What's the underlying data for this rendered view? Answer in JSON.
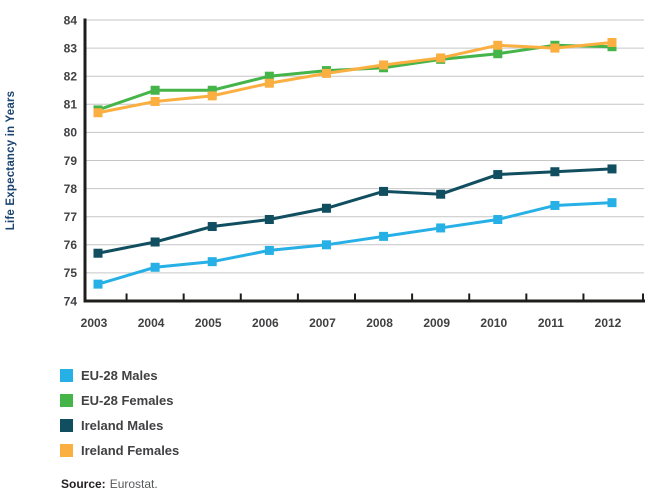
{
  "chart_data": {
    "type": "line",
    "title": "",
    "xlabel": "",
    "ylabel": "Life Expectancy in Years",
    "x": [
      "2003",
      "2004",
      "2005",
      "2006",
      "2007",
      "2008",
      "2009",
      "2010",
      "2011",
      "2012"
    ],
    "ylim": [
      74,
      84
    ],
    "ytick_step": 1,
    "grid": true,
    "legend_position": "bottom-left",
    "marker": "square",
    "series": [
      {
        "name": "EU-28 Males",
        "color": "#27B0E5",
        "values": [
          74.6,
          75.2,
          75.4,
          75.8,
          76.0,
          76.3,
          76.6,
          76.9,
          77.4,
          77.5
        ]
      },
      {
        "name": "EU-28 Females",
        "color": "#45B449",
        "values": [
          80.8,
          81.5,
          81.5,
          82.0,
          82.2,
          82.3,
          82.6,
          82.8,
          83.1,
          83.05
        ]
      },
      {
        "name": "Ireland Males",
        "color": "#114F60",
        "values": [
          75.7,
          76.1,
          76.65,
          76.9,
          77.3,
          77.9,
          77.8,
          78.5,
          78.6,
          78.7
        ]
      },
      {
        "name": "Ireland Females",
        "color": "#FAAF40",
        "values": [
          80.7,
          81.1,
          81.3,
          81.75,
          82.1,
          82.4,
          82.65,
          83.1,
          83.0,
          83.2
        ]
      }
    ]
  },
  "source": {
    "label": "Source:",
    "text": "Eurostat."
  },
  "colors": {
    "axis": "#1D1D1B",
    "grid": "#C6C6C6",
    "tick_label": "#414042",
    "ylabel_text": "#1B4470",
    "legend_text": "#414042",
    "source_label": "#231F20",
    "source_text": "#58595B",
    "background": "#FFFFFF"
  }
}
